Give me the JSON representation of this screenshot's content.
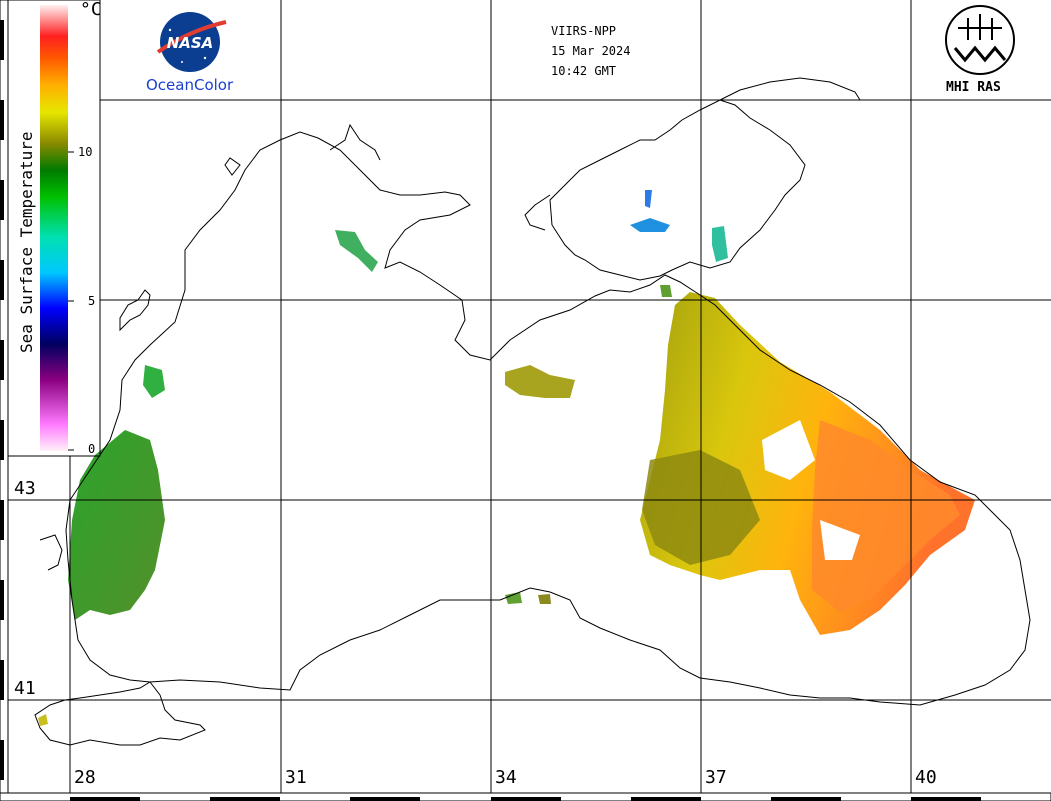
{
  "header": {
    "sensor": "VIIRS-NPP",
    "date": "15 Mar 2024",
    "time": "10:42 GMT"
  },
  "logos": {
    "nasa": "NASA",
    "oceancolor": "OceanColor",
    "mhi": "MHI RAS"
  },
  "colorbar": {
    "title": "Sea Surface Temperature",
    "unit": "°C",
    "ticks": [
      "10",
      "5",
      "0"
    ],
    "range": [
      0,
      14
    ],
    "colors": [
      "#ffe6f5",
      "#ff66ff",
      "#8a0080",
      "#000080",
      "#0000ff",
      "#00c8ff",
      "#00e0b0",
      "#00c000",
      "#007a00",
      "#8a8a00",
      "#e6e600",
      "#ffb000",
      "#ff5a00",
      "#ff0000",
      "#ffb0b0",
      "#fff0f0"
    ]
  },
  "axes": {
    "longitude_ticks": [
      "28",
      "31",
      "34",
      "37",
      "40"
    ],
    "latitude_ticks": [
      "43",
      "41"
    ],
    "grid": true
  },
  "map_features": {
    "region": "Black Sea",
    "sst_max_east": 13,
    "sst_west_coast": 9
  }
}
